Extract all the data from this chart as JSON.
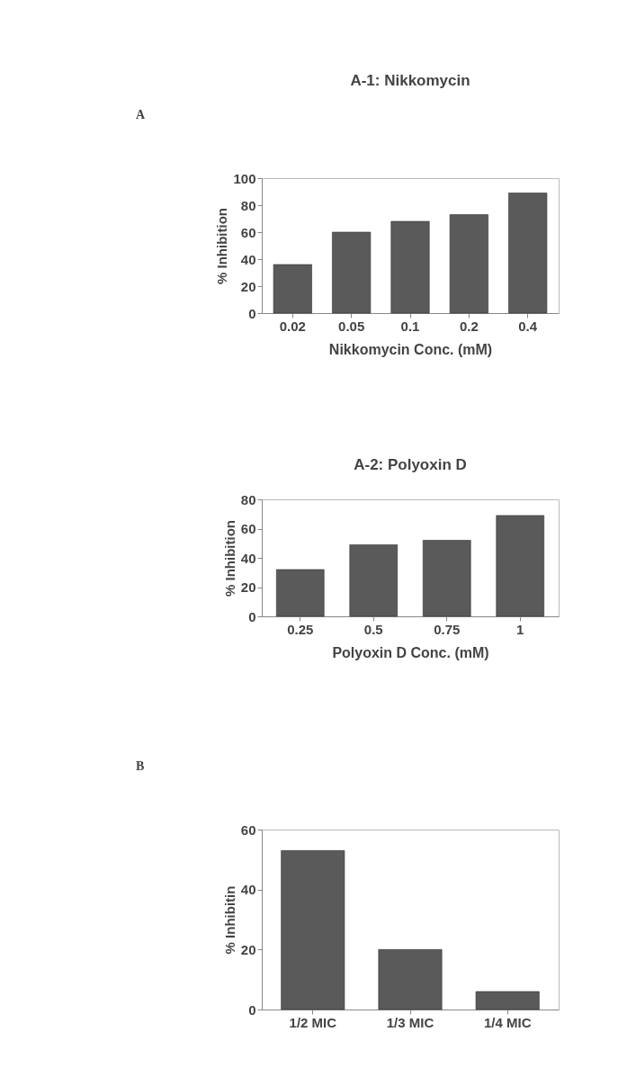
{
  "chart_data": [
    {
      "type": "bar",
      "title": "A-1:  Nikkomycin",
      "xlabel": "Nikkomycin Conc. (mM)",
      "ylabel": "% Inhibition",
      "annotations": [
        "A"
      ],
      "categories": [
        "0.02",
        "0.05",
        "0.1",
        "0.2",
        "0.4"
      ],
      "values": [
        36,
        60,
        68,
        73,
        89
      ],
      "color": "#5a5a5a",
      "ylim": [
        0,
        100
      ],
      "yticks": [
        0,
        20,
        40,
        60,
        80,
        100
      ]
    },
    {
      "type": "bar",
      "title": "A-2: Polyoxin D",
      "xlabel": "Polyoxin D Conc. (mM)",
      "ylabel": "% Inhibition",
      "categories": [
        "0.25",
        "0.5",
        "0.75",
        "1"
      ],
      "values": [
        32,
        49,
        52,
        69
      ],
      "color": "#5a5a5a",
      "ylim": [
        0,
        80
      ],
      "yticks": [
        0,
        20,
        40,
        60,
        80
      ]
    },
    {
      "type": "bar",
      "ylabel": "% Inhibitin",
      "annotations": [
        "B"
      ],
      "categories": [
        "1/2  MIC",
        "1/3  MIC",
        "1/4  MIC"
      ],
      "values": [
        53,
        20,
        6
      ],
      "color": "#5a5a5a",
      "ylim": [
        0,
        60
      ],
      "yticks": [
        0,
        20,
        40,
        60
      ]
    }
  ]
}
